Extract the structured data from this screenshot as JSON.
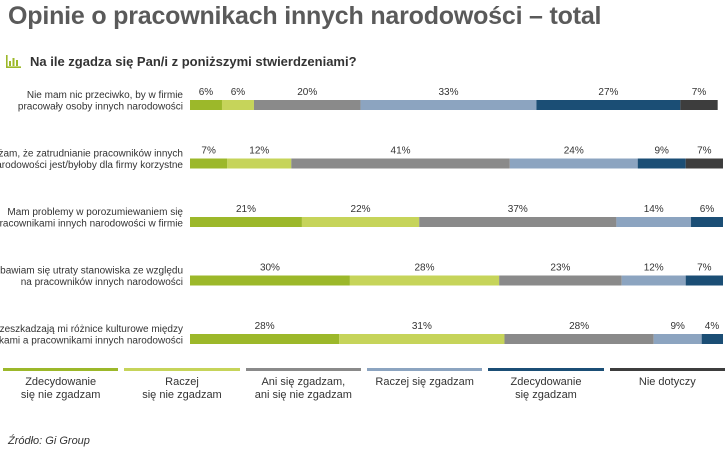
{
  "colors": {
    "title": "#5a5a5a",
    "icon": "#9cb82a",
    "series": [
      "#9cb82a",
      "#c6d45a",
      "#8a8a8a",
      "#8ca4c0",
      "#1b4e75",
      "#3d3d3d"
    ]
  },
  "icon": "bar-chart-icon",
  "chart_data": {
    "type": "bar",
    "orientation": "horizontal",
    "stacked": true,
    "title": "Opinie o pracownikach innych narodowości – total",
    "subtitle": "Na ile zgadza się Pan/i z poniższymi stwierdzeniami?",
    "categories": [
      [
        "Nie mam nic przeciwko, by w firmie",
        "pracowały osoby innych narodowości"
      ],
      [
        "Uważam, że zatrudnianie pracowników innych",
        "narodowości jest/byłoby dla firmy korzystne"
      ],
      [
        "Mam problemy w porozumiewaniem się",
        "z pracownikami innych narodowości w firmie"
      ],
      [
        "Obawiam się utraty stanowiska ze względu",
        "na pracowników innych narodowości"
      ],
      [
        "Przeszkadzają mi różnice kulturowe między",
        "Polakami a pracownikami innych narodowości"
      ]
    ],
    "series": [
      {
        "name": "Zdecydowanie\nsię nie zgadzam",
        "values": [
          6,
          7,
          21,
          30,
          28
        ]
      },
      {
        "name": "Raczej\nsię nie zgadzam",
        "values": [
          6,
          12,
          22,
          28,
          31
        ]
      },
      {
        "name": "Ani się zgadzam,\nani się nie zgadzam",
        "values": [
          20,
          41,
          37,
          23,
          28
        ]
      },
      {
        "name": "Raczej się zgadzam",
        "values": [
          33,
          24,
          14,
          12,
          9
        ]
      },
      {
        "name": "Zdecydowanie\nsię zgadzam",
        "values": [
          27,
          9,
          6,
          7,
          4
        ]
      },
      {
        "name": "Nie dotyczy",
        "values": [
          7,
          7,
          0,
          0,
          0
        ]
      }
    ],
    "value_suffix": "%",
    "xlim": [
      0,
      100
    ],
    "grid": false,
    "legend_position": "bottom"
  },
  "source": "Źródło: Gi Group"
}
